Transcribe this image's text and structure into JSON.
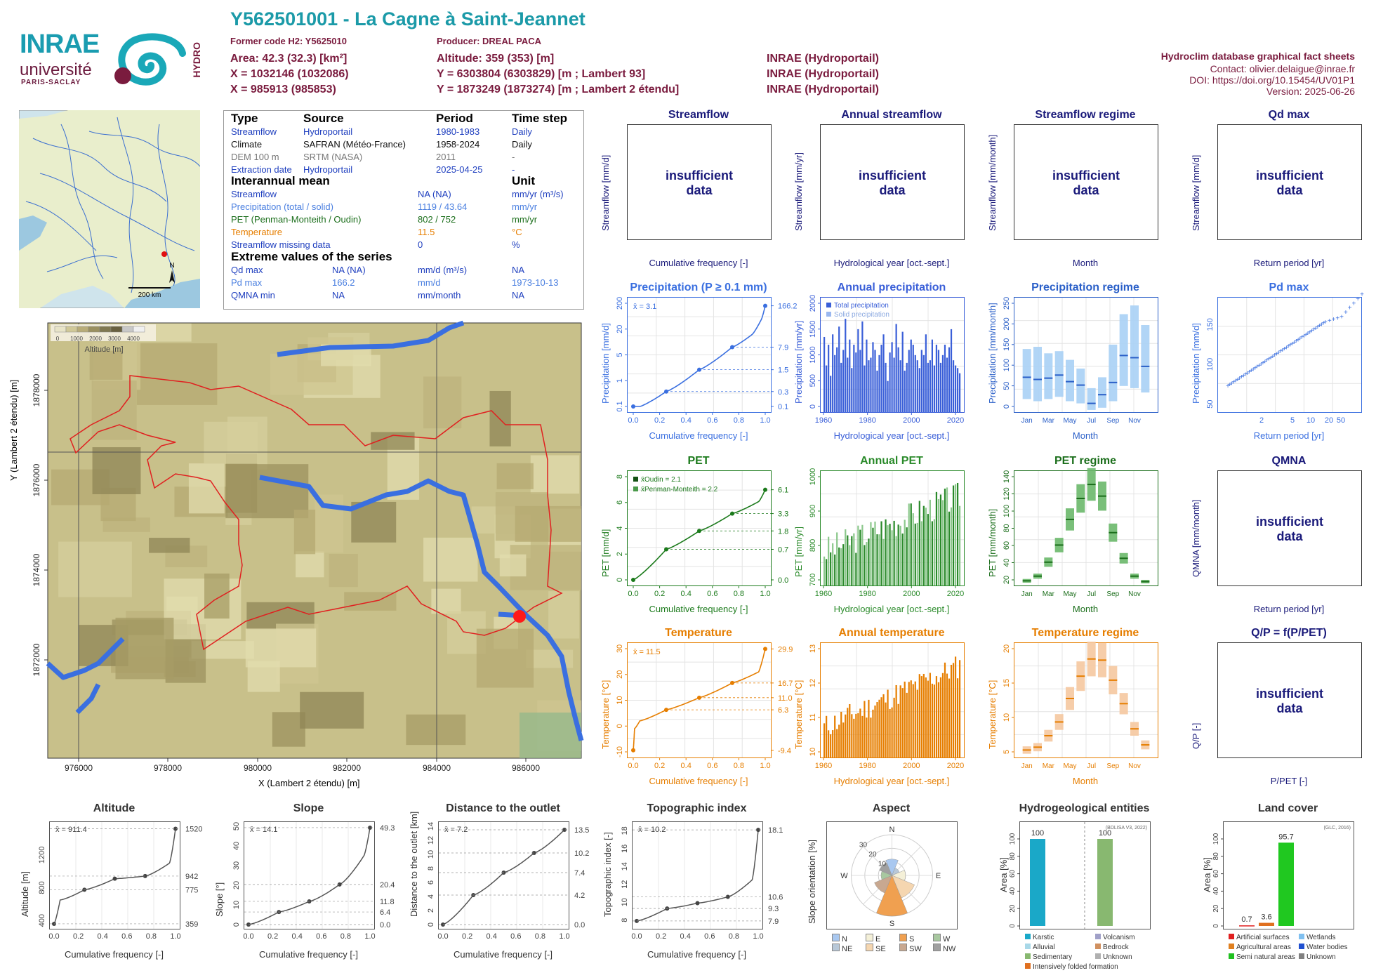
{
  "header": {
    "title": "Y562501001 - La Cagne à Saint-Jeannet",
    "former_code": "Former code H2: Y5625010",
    "producer": "Producer: DREAL PACA",
    "area": "Area: 42.3 (32.3) [km²]",
    "altitude": "Altitude: 359 (353) [m]",
    "x_l93": "X = 1032146 (1032086)",
    "y_l93": "Y = 6303804 (6303829) [m ; Lambert 93]",
    "x_l2": "X = 985913 (985853)",
    "y_l2": "Y = 1873249 (1873274) [m ; Lambert 2 étendu]",
    "src1": "INRAE (Hydroportail)",
    "src2": "INRAE (Hydroportail)",
    "src3": "INRAE (Hydroportail)"
  },
  "credits": {
    "title": "Hydroclim database graphical fact sheets",
    "contact": "Contact: olivier.delaigue@inrae.fr",
    "doi": "DOI: https://doi.org/10.15454/UV01P1",
    "version": "Version: 2025-06-26"
  },
  "logos": {
    "inrae": "INRAE",
    "universite": "université",
    "paris_saclay": "PARIS-SACLAY",
    "hydro": "HYDRO"
  },
  "minimap": {
    "scale": "200 km",
    "north": "N"
  },
  "info": {
    "h_type": "Type",
    "h_source": "Source",
    "h_period": "Period",
    "h_timestep": "Time step",
    "rows": [
      {
        "type": "Streamflow",
        "source": "Hydroportail",
        "period": "1980-1983",
        "step": "Daily",
        "color": "#1f3fbf"
      },
      {
        "type": "Climate",
        "source": "SAFRAN (Météo-France)",
        "period": "1958-2024",
        "step": "Daily",
        "color": "#111111"
      },
      {
        "type": "DEM 100 m",
        "source": "SRTM (NASA)",
        "period": "2011",
        "step": "-",
        "color": "#777777"
      },
      {
        "type": "Extraction date",
        "source": "Hydroportail",
        "period": "2025-04-25",
        "step": "-",
        "color": "#1f3fbf"
      }
    ],
    "h_mean": "Interannual mean",
    "h_unit": "Unit",
    "means": [
      {
        "name": "Streamflow",
        "value": "NA (NA)",
        "unit": "mm/yr (m³/s)",
        "color": "#1f3fbf"
      },
      {
        "name": "Precipitation (total / solid)",
        "value": "1119 / 43.64",
        "unit": "mm/yr",
        "color": "#4a7fe0"
      },
      {
        "name": "PET (Penman-Monteith / Oudin)",
        "value": "802 / 752",
        "unit": "mm/yr",
        "color": "#1b6e1b"
      },
      {
        "name": "Temperature",
        "value": "11.5",
        "unit": "°C",
        "color": "#e67e00"
      },
      {
        "name": "Streamflow missing data",
        "value": "0",
        "unit": "%",
        "color": "#1f3fbf"
      }
    ],
    "h_extreme": "Extreme values of the series",
    "extremes": [
      {
        "name": "Qd max",
        "value": "NA (NA)",
        "unit": "mm/d (m³/s)",
        "date": "NA",
        "color": "#1f3fbf"
      },
      {
        "name": "Pd max",
        "value": "166.2",
        "unit": "mm/d",
        "date": "1973-10-13",
        "color": "#4a7fe0"
      },
      {
        "name": "QMNA min",
        "value": "NA",
        "unit": "mm/month",
        "date": "NA",
        "color": "#1f3fbf"
      }
    ]
  },
  "map": {
    "xlabel": "X (Lambert 2 étendu) [m]",
    "ylabel": "Y (Lambert 2 étendu) [m]",
    "xticks": [
      "976000",
      "978000",
      "980000",
      "982000",
      "984000",
      "986000"
    ],
    "yticks": [
      "1872000",
      "1874000",
      "1876000",
      "1878000"
    ],
    "legend_title": "Altitude [m]",
    "legend_ticks": [
      "0",
      "1000",
      "2000",
      "3000",
      "4000"
    ]
  },
  "panels": {
    "streamflow": {
      "title": "Streamflow",
      "msg": "insufficient data",
      "ylabel": "Streamflow [mm/d]",
      "xlabel": "Cumulative frequency [-]"
    },
    "annual_streamflow": {
      "title": "Annual streamflow",
      "msg": "insufficient data",
      "ylabel": "Streamflow [mm/yr]",
      "xlabel": "Hydrological year [oct.-sept.]"
    },
    "streamflow_regime": {
      "title": "Streamflow regime",
      "msg": "insufficient data",
      "ylabel": "Streamflow [mm/month]",
      "xlabel": "Month"
    },
    "qd_max": {
      "title": "Qd max",
      "msg": "insufficient data",
      "ylabel": "Streamflow [mm/d]",
      "xlabel": "Return period [yr]"
    },
    "qmna": {
      "title": "QMNA",
      "msg": "insufficient data",
      "ylabel": "QMNA [mm/month]",
      "xlabel": "Return period [yr]"
    },
    "qp": {
      "title": "Q/P = f(P/PET)",
      "msg": "insufficient data",
      "ylabel": "Q/P [-]",
      "xlabel": "P/PET [-]"
    }
  },
  "chart_data": [
    {
      "id": "precip_cdf",
      "type": "line",
      "title": "Precipitation (P ≥ 0.1 mm)",
      "xlabel": "Cumulative frequency [-]",
      "ylabel": "Precipitation [mm/d]",
      "y_scale": "log",
      "mean_label": "x̄ = 3.1",
      "x": [
        0,
        0.05,
        0.25,
        0.5,
        0.75,
        0.9,
        0.97,
        1.0
      ],
      "y": [
        0.1,
        0.1,
        0.3,
        1.5,
        7.9,
        20,
        60,
        166.2
      ],
      "right_ticks": [
        "166.2",
        "7.9",
        "1.5",
        "0.3",
        "0.1"
      ],
      "yticks": [
        "0.1",
        "1",
        "5",
        "20",
        "200"
      ],
      "xticks": [
        "0.0",
        "0.2",
        "0.4",
        "0.6",
        "0.8",
        "1.0"
      ],
      "color": "#3a6fe0"
    },
    {
      "id": "annual_precip",
      "type": "bar",
      "title": "Annual precipitation",
      "xlabel": "Hydrological year [oct.-sept.]",
      "ylabel": "Precipitation [mm/yr]",
      "ylim": [
        0,
        2100
      ],
      "legend": [
        "Total precipitation",
        "Solid precipitation"
      ],
      "years_start": 1959,
      "years_end": 2023,
      "values": [
        1450,
        900,
        1300,
        700,
        1500,
        1100,
        1250,
        1650,
        950,
        1200,
        1800,
        1050,
        1400,
        850,
        1300,
        1150,
        1600,
        1200,
        1750,
        900,
        1400,
        1000,
        1050,
        1350,
        1200,
        800,
        1100,
        1300,
        1500,
        950,
        600,
        1150,
        1350,
        1050,
        1700,
        1250,
        1000,
        1550,
        800,
        950,
        1200,
        1400,
        1300,
        1100,
        1000,
        850,
        1200,
        1100,
        1500,
        950,
        1000,
        1400,
        900,
        1300,
        1200,
        950,
        1100,
        1300,
        1050,
        1250,
        1600,
        1000,
        900,
        850,
        750
      ],
      "xticks": [
        "1960",
        "1980",
        "2000",
        "2020"
      ],
      "yticks": [
        "0",
        "500",
        "1000",
        "1500",
        "2000"
      ],
      "color": "#3a5fd8"
    },
    {
      "id": "precip_regime",
      "type": "box",
      "title": "Precipitation regime",
      "xlabel": "Month",
      "ylabel": "Precipitation [mm/month]",
      "ylim": [
        0,
        250
      ],
      "months": [
        "Jan",
        "Feb",
        "Mar",
        "Apr",
        "May",
        "Jun",
        "Jul",
        "Aug",
        "Sep",
        "Oct",
        "Nov",
        "Dec"
      ],
      "month_ticks": [
        "Jan",
        "Mar",
        "May",
        "Jul",
        "Sep",
        "Nov"
      ],
      "median": [
        80,
        75,
        78,
        85,
        70,
        62,
        20,
        40,
        68,
        130,
        125,
        105
      ],
      "q10": [
        30,
        25,
        30,
        35,
        25,
        20,
        5,
        10,
        25,
        60,
        55,
        45
      ],
      "q90": [
        145,
        150,
        135,
        140,
        120,
        100,
        55,
        80,
        155,
        225,
        245,
        200
      ],
      "yticks": [
        "0",
        "50",
        "100",
        "150",
        "200",
        "250"
      ],
      "color": "#a8d0f5"
    },
    {
      "id": "pd_max",
      "type": "scatter",
      "title": "Pd max",
      "xlabel": "Return period [yr]",
      "ylabel": "Precipitation [mm/d]",
      "x_scale": "gumbel",
      "xticks": [
        "2",
        "5",
        "10",
        "20",
        "50"
      ],
      "yticks": [
        "50",
        "100",
        "150"
      ],
      "y_range": [
        40,
        175
      ],
      "color": "#3a6fe0"
    },
    {
      "id": "pet_cdf",
      "type": "line",
      "title": "PET",
      "xlabel": "Cumulative frequency [-]",
      "ylabel": "PET [mm/d]",
      "y_scale": "sqrt",
      "legend": [
        "x̄Oudin = 2.1",
        "x̄Penman-Monteith = 2.2"
      ],
      "x": [
        0,
        0.25,
        0.5,
        0.75,
        0.95,
        1.0
      ],
      "y": [
        0,
        0.7,
        1.8,
        3.3,
        4.6,
        6.1
      ],
      "right_ticks": [
        "6.1",
        "3.3",
        "1.8",
        "0.7",
        "0.0"
      ],
      "yticks": [
        "0",
        "2",
        "4",
        "6",
        "8"
      ],
      "xticks": [
        "0.0",
        "0.2",
        "0.4",
        "0.6",
        "0.8",
        "1.0"
      ],
      "color": "#1b7a1b"
    },
    {
      "id": "annual_pet",
      "type": "bar",
      "title": "Annual PET",
      "xlabel": "Hydrological year [oct.-sept.]",
      "ylabel": "PET [mm/yr]",
      "ylim": [
        650,
        1050
      ],
      "xticks": [
        "1960",
        "1980",
        "2000",
        "2020"
      ],
      "yticks": [
        "700",
        "800",
        "900",
        "1000"
      ],
      "color": "#2a8a2a"
    },
    {
      "id": "pet_regime",
      "type": "box",
      "title": "PET regime",
      "xlabel": "Month",
      "ylabel": "PET [mm/month]",
      "ylim": [
        10,
        150
      ],
      "months": [
        "Jan",
        "Feb",
        "Mar",
        "Apr",
        "May",
        "Jun",
        "Jul",
        "Aug",
        "Sep",
        "Oct",
        "Nov",
        "Dec"
      ],
      "month_ticks": [
        "Jan",
        "Mar",
        "May",
        "Jul",
        "Sep",
        "Nov"
      ],
      "median": [
        16,
        22,
        40,
        62,
        95,
        122,
        140,
        125,
        78,
        45,
        22,
        15
      ],
      "yticks": [
        "20",
        "40",
        "60",
        "80",
        "100",
        "120",
        "140"
      ],
      "color": "#1b7a1b"
    },
    {
      "id": "temp_cdf",
      "type": "line",
      "title": "Temperature",
      "xlabel": "Cumulative frequency [-]",
      "ylabel": "Temperature [°C]",
      "mean_label": "x̄ = 11.5",
      "x": [
        0,
        0.01,
        0.05,
        0.25,
        0.5,
        0.75,
        0.95,
        1.0
      ],
      "y": [
        -9.4,
        -1,
        2,
        6.3,
        11.0,
        16.7,
        21,
        29.9
      ],
      "right_ticks": [
        "29.9",
        "16.7",
        "11.0",
        "6.3",
        "-9.4"
      ],
      "yticks": [
        "-10",
        "0",
        "10",
        "20",
        "30"
      ],
      "xticks": [
        "0.0",
        "0.2",
        "0.4",
        "0.6",
        "0.8",
        "1.0"
      ],
      "color": "#e67e00"
    },
    {
      "id": "annual_temp",
      "type": "bar",
      "title": "Annual temperature",
      "xlabel": "Hydrological year [oct.-sept.]",
      "ylabel": "Temperature [°C]",
      "ylim": [
        9.5,
        13.8
      ],
      "xticks": [
        "1960",
        "1980",
        "2000",
        "2020"
      ],
      "yticks": [
        "10",
        "11",
        "12",
        "13"
      ],
      "color": "#e67e00"
    },
    {
      "id": "temp_regime",
      "type": "box",
      "title": "Temperature regime",
      "xlabel": "Month",
      "ylabel": "Temperature [°C]",
      "ylim": [
        3,
        22
      ],
      "months": [
        "Jan",
        "Feb",
        "Mar",
        "Apr",
        "May",
        "Jun",
        "Jul",
        "Aug",
        "Sep",
        "Oct",
        "Nov",
        "Dec"
      ],
      "month_ticks": [
        "Jan",
        "Mar",
        "May",
        "Jul",
        "Sep",
        "Nov"
      ],
      "median": [
        4.3,
        4.8,
        6.8,
        9.2,
        13.3,
        17.2,
        20.2,
        20.0,
        16.5,
        12.4,
        8.0,
        5.2
      ],
      "yticks": [
        "5",
        "10",
        "15",
        "20"
      ],
      "color": "#f5b07a"
    },
    {
      "id": "altitude",
      "type": "line",
      "title": "Altitude",
      "xlabel": "Cumulative frequency [-]",
      "ylabel": "Altitude [m]",
      "mean_label": "x̄ = 911.4",
      "x": [
        0,
        0.05,
        0.25,
        0.5,
        0.75,
        0.95,
        1.0
      ],
      "y": [
        359,
        650,
        775,
        910,
        942,
        1100,
        1520
      ],
      "ylim": [
        350,
        1550
      ],
      "right_ticks": [
        "1520",
        "942",
        "775",
        "359"
      ],
      "yticks": [
        "400",
        "800",
        "1200"
      ],
      "xticks": [
        "0.0",
        "0.2",
        "0.4",
        "0.6",
        "0.8",
        "1.0"
      ],
      "color": "#555555"
    },
    {
      "id": "slope",
      "type": "line",
      "title": "Slope",
      "xlabel": "Cumulative frequency [-]",
      "ylabel": "Slope [°]",
      "mean_label": "x̄ = 14.1",
      "x": [
        0,
        0.25,
        0.5,
        0.75,
        0.95,
        1.0
      ],
      "y": [
        0,
        6.4,
        11.8,
        20.4,
        35,
        49.3
      ],
      "ylim": [
        0,
        50
      ],
      "right_ticks": [
        "49.3",
        "20.4",
        "11.8",
        "6.4",
        "0.0"
      ],
      "yticks": [
        "0",
        "10",
        "20",
        "30",
        "40",
        "50"
      ],
      "xticks": [
        "0.0",
        "0.2",
        "0.4",
        "0.6",
        "0.8",
        "1.0"
      ],
      "color": "#555555"
    },
    {
      "id": "distance",
      "type": "line",
      "title": "Distance to the outlet",
      "xlabel": "Cumulative frequency [-]",
      "ylabel": "Distance to the outlet [km]",
      "mean_label": "x̄ = 7.2",
      "x": [
        0,
        0.25,
        0.5,
        0.75,
        1.0
      ],
      "y": [
        0,
        4.2,
        7.4,
        10.2,
        13.5
      ],
      "ylim": [
        0,
        14
      ],
      "right_ticks": [
        "13.5",
        "10.2",
        "7.4",
        "4.2",
        "0.0"
      ],
      "yticks": [
        "0",
        "2",
        "4",
        "6",
        "8",
        "10",
        "12",
        "14"
      ],
      "xticks": [
        "0.0",
        "0.2",
        "0.4",
        "0.6",
        "0.8",
        "1.0"
      ],
      "color": "#555555"
    },
    {
      "id": "topo",
      "type": "line",
      "title": "Topographic index",
      "xlabel": "Cumulative frequency [-]",
      "ylabel": "Topographic index [-]",
      "mean_label": "x̄ = 10.2",
      "x": [
        0,
        0.25,
        0.5,
        0.75,
        0.95,
        1.0
      ],
      "y": [
        7.9,
        9.3,
        9.9,
        10.6,
        12.5,
        18.1
      ],
      "ylim": [
        7.5,
        18.5
      ],
      "right_ticks": [
        "18.1",
        "10.6",
        "9.3",
        "7.9"
      ],
      "yticks": [
        "8",
        "10",
        "12",
        "14",
        "16",
        "18"
      ],
      "xticks": [
        "0.0",
        "0.2",
        "0.4",
        "0.6",
        "0.8",
        "1.0"
      ],
      "color": "#555555"
    },
    {
      "id": "aspect",
      "type": "rose",
      "title": "Aspect",
      "ylabel": "Slope orientation [%]",
      "directions": [
        "N",
        "NE",
        "E",
        "SE",
        "S",
        "SW",
        "W",
        "NW"
      ],
      "values": [
        12,
        6,
        10,
        18,
        30,
        14,
        8,
        10
      ],
      "rings": [
        "10",
        "20",
        "30"
      ],
      "colors": [
        "#a9c8f0",
        "#b8c8d8",
        "#f4f0d8",
        "#f5d6b0",
        "#f0a050",
        "#c8a890",
        "#a8c8a0",
        "#a0a0a0"
      ]
    },
    {
      "id": "hydrogeo",
      "type": "bar",
      "title": "Hydrogeological entities",
      "ylabel": "Area [%]",
      "source": "(BDLISA V3, 2022)",
      "categories": [
        "Karstic",
        "Volcanism"
      ],
      "values": [
        100,
        100
      ],
      "labels": [
        "100",
        "100"
      ],
      "yticks": [
        "0",
        "20",
        "40",
        "60",
        "80",
        "100"
      ],
      "legend": [
        "Karstic",
        "Volcanism",
        "Alluvial",
        "Bedrock",
        "Sedimentary",
        "Unknown",
        "Intensively folded formation"
      ],
      "legend_colors": [
        "#1aa8c8",
        "#a0a0c8",
        "#a8d8e8",
        "#d09060",
        "#88b870",
        "#b0b0b0",
        "#e07020"
      ],
      "colors": [
        "#1aa8c8",
        "#88b870"
      ]
    },
    {
      "id": "landcover",
      "type": "bar",
      "title": "Land cover",
      "ylabel": "Area [%]",
      "source": "(GLC, 2016)",
      "categories": [
        "Artificial surfaces",
        "Agricultural areas",
        "Semi natural areas"
      ],
      "values": [
        0.7,
        3.6,
        95.7
      ],
      "labels": [
        "0.7",
        "3.6",
        "95.7"
      ],
      "yticks": [
        "0",
        "20",
        "40",
        "60",
        "80",
        "100"
      ],
      "legend": [
        "Artificial surfaces",
        "Wetlands",
        "Agricultural areas",
        "Water bodies",
        "Semi natural areas",
        "Unknown"
      ],
      "legend_colors": [
        "#e02020",
        "#80c0f0",
        "#e08020",
        "#2050d0",
        "#20c020",
        "#808080"
      ],
      "colors": [
        "#e02020",
        "#e07020",
        "#20c820"
      ]
    }
  ]
}
